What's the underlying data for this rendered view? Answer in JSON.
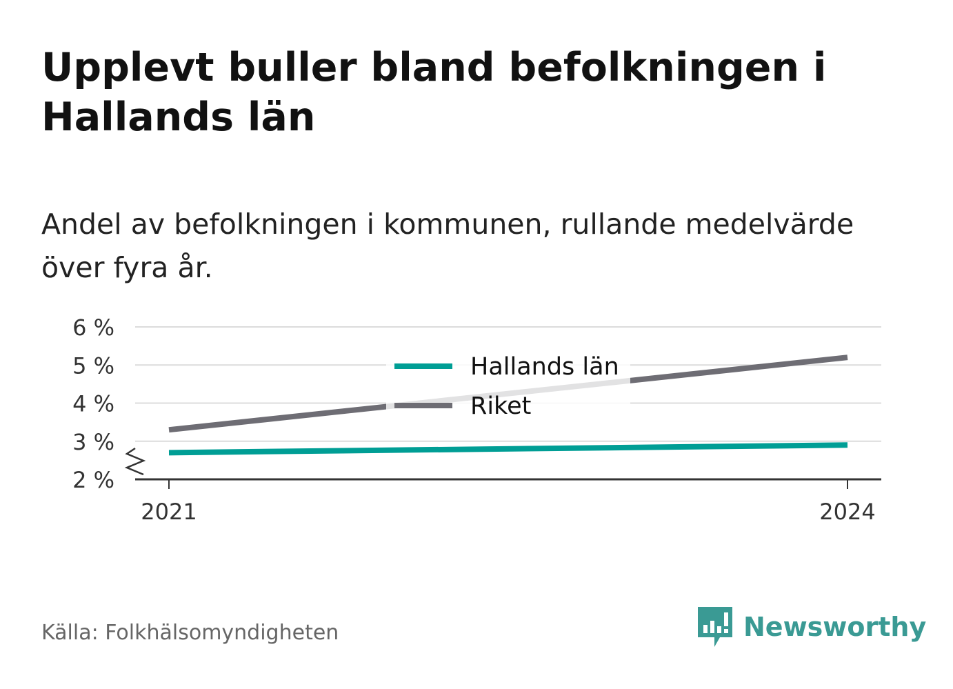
{
  "title": "Upplevt buller bland befolkningen i Hallands län",
  "subtitle": "Andel av befolkningen i kommunen, rullande medelvärde över fyra år.",
  "source": "Källa: Folkhälsomyndigheten",
  "brand": {
    "name": "Newsworthy",
    "icon": "newsworthy-logo-icon",
    "color": "#3a9a94"
  },
  "chart_data": {
    "type": "line",
    "x": [
      2021,
      2024
    ],
    "x_tick_labels": [
      "2021",
      "2024"
    ],
    "y_tick_labels": [
      "2 %",
      "3 %",
      "4 %",
      "5 %",
      "6 %"
    ],
    "ylim": [
      2,
      6
    ],
    "y_axis_break": true,
    "grid": true,
    "legend_position": "top-center",
    "series": [
      {
        "name": "Hallands län",
        "values": [
          2.7,
          2.9
        ],
        "color": "#009e95"
      },
      {
        "name": "Riket",
        "values": [
          3.3,
          5.2
        ],
        "color": "#6e6d74"
      }
    ]
  }
}
